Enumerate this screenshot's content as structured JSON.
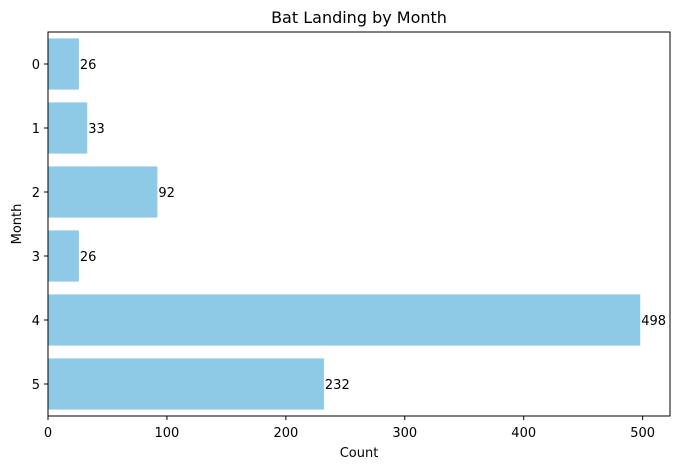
{
  "chart_data": {
    "type": "bar",
    "orientation": "horizontal",
    "title": "Bat Landing by Month",
    "xlabel": "Count",
    "ylabel": "Month",
    "categories": [
      "0",
      "1",
      "2",
      "3",
      "4",
      "5"
    ],
    "values": [
      26,
      33,
      92,
      26,
      498,
      232
    ],
    "data_labels": [
      "26",
      "33",
      "92",
      "26",
      "498",
      "232"
    ],
    "xlim": [
      0,
      523
    ],
    "xticks": [
      0,
      100,
      200,
      300,
      400,
      500
    ],
    "xtick_labels": [
      "0",
      "100",
      "200",
      "300",
      "400",
      "500"
    ],
    "bar_color": "#8ecae6",
    "grid": false,
    "legend": "none"
  }
}
